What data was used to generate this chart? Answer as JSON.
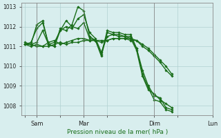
{
  "background_color": "#d8eeee",
  "grid_color": "#b0d0d0",
  "line_color": "#1a6e1a",
  "xlabel": "Pression niveau de la mer( hPa )",
  "ylim": [
    1007.5,
    1013.2
  ],
  "yticks": [
    1008,
    1009,
    1010,
    1011,
    1012,
    1013
  ],
  "xtick_labels": [
    "",
    "Sam",
    "",
    "Mar",
    "",
    "Dim",
    "",
    "Lun"
  ],
  "xtick_positions": [
    0,
    1,
    3,
    5,
    7,
    11,
    13,
    16
  ],
  "lines": [
    {
      "x": [
        0,
        0.5,
        1.0,
        1.5,
        2.0,
        2.5,
        3.0,
        3.5,
        4.0,
        4.5,
        5.0,
        5.5,
        6.0,
        6.5,
        7.0,
        7.5,
        8.0,
        8.5,
        9.0,
        9.5,
        10.0,
        10.5,
        11.0,
        11.5,
        12.0,
        12.5
      ],
      "y": [
        1011.1,
        1011.1,
        1011.2,
        1011.8,
        1011.1,
        1011.2,
        1011.8,
        1012.0,
        1011.9,
        1012.4,
        1012.6,
        1011.7,
        1011.4,
        1010.7,
        1011.5,
        1011.6,
        1011.6,
        1011.5,
        1011.5,
        1010.9,
        1009.8,
        1009.0,
        1008.5,
        1008.4,
        1007.9,
        1007.8
      ]
    },
    {
      "x": [
        0,
        0.5,
        1.0,
        1.5,
        2.0,
        2.5,
        3.0,
        3.5,
        4.0,
        4.5,
        5.0,
        5.5,
        6.0,
        6.5,
        7.0,
        7.5,
        8.0,
        8.5,
        9.0,
        9.5,
        10.0,
        10.5,
        11.0,
        11.5,
        12.0,
        12.5
      ],
      "y": [
        1011.1,
        1011.2,
        1011.9,
        1012.2,
        1011.1,
        1011.0,
        1011.9,
        1011.8,
        1012.1,
        1013.0,
        1012.8,
        1011.5,
        1011.3,
        1010.6,
        1011.8,
        1011.7,
        1011.7,
        1011.6,
        1011.6,
        1010.9,
        1009.6,
        1008.9,
        1008.3,
        1008.2,
        1007.8,
        1007.7
      ]
    },
    {
      "x": [
        0,
        0.5,
        1.0,
        1.5,
        2.0,
        2.5,
        3.0,
        3.5,
        4.0,
        4.5,
        5.0,
        5.5,
        6.0,
        6.5,
        7.0,
        7.5,
        8.0,
        8.5,
        9.0,
        9.5,
        10.0,
        10.5,
        11.0,
        11.5,
        12.0,
        12.5
      ],
      "y": [
        1011.1,
        1011.1,
        1012.1,
        1012.3,
        1011.1,
        1011.0,
        1011.8,
        1012.3,
        1012.0,
        1011.9,
        1012.2,
        1011.4,
        1011.3,
        1010.5,
        1011.7,
        1011.6,
        1011.5,
        1011.5,
        1011.4,
        1010.8,
        1009.5,
        1008.8,
        1008.6,
        1008.3,
        1008.1,
        1007.9
      ]
    },
    {
      "x": [
        0,
        0.5,
        1.0,
        1.5,
        2.0,
        2.5,
        3.0,
        3.5,
        4.0,
        4.5,
        5.0,
        5.5,
        6.0,
        6.5,
        7.0,
        7.5,
        8.0,
        8.5,
        9.0,
        9.5,
        10.0,
        10.5,
        11.0,
        11.5,
        12.0,
        12.5
      ],
      "y": [
        1011.1,
        1011.0,
        1011.1,
        1011.0,
        1011.2,
        1011.3,
        1011.1,
        1011.2,
        1011.3,
        1011.4,
        1011.4,
        1011.3,
        1011.3,
        1011.3,
        1011.3,
        1011.4,
        1011.4,
        1011.4,
        1011.3,
        1011.3,
        1011.0,
        1010.8,
        1010.5,
        1010.2,
        1009.8,
        1009.5
      ]
    },
    {
      "x": [
        0,
        0.5,
        1.0,
        1.5,
        2.0,
        2.5,
        3.0,
        3.5,
        4.0,
        4.5,
        5.0,
        5.5,
        6.0,
        6.5,
        7.0,
        7.5,
        8.0,
        8.5,
        9.0,
        9.5,
        10.0,
        10.5,
        11.0,
        11.5,
        12.0,
        12.5
      ],
      "y": [
        1011.2,
        1011.1,
        1011.0,
        1011.0,
        1011.0,
        1011.1,
        1011.2,
        1011.1,
        1011.2,
        1011.2,
        1011.3,
        1011.3,
        1011.3,
        1011.2,
        1011.3,
        1011.4,
        1011.4,
        1011.4,
        1011.4,
        1011.3,
        1011.1,
        1010.9,
        1010.6,
        1010.3,
        1010.0,
        1009.6
      ]
    }
  ],
  "vline_positions": [
    1,
    5,
    11,
    16
  ],
  "vline_color": "#888888",
  "figsize": [
    3.2,
    2.0
  ],
  "dpi": 100
}
